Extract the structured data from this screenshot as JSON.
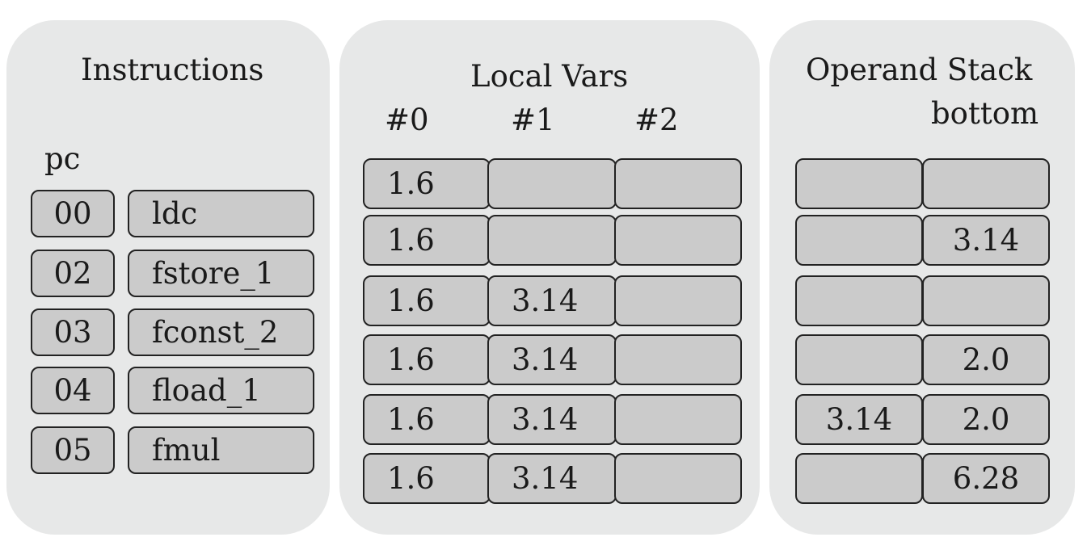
{
  "instructions": {
    "title": "Instructions",
    "pc_label": "pc",
    "rows": [
      {
        "pc": "00",
        "op": "ldc"
      },
      {
        "pc": "02",
        "op": "fstore_1"
      },
      {
        "pc": "03",
        "op": "fconst_2"
      },
      {
        "pc": "04",
        "op": "fload_1"
      },
      {
        "pc": "05",
        "op": "fmul"
      }
    ]
  },
  "local_vars": {
    "title": "Local Vars",
    "headers": [
      "#0",
      "#1",
      "#2"
    ],
    "rows": [
      [
        "1.6",
        "",
        ""
      ],
      [
        "1.6",
        "",
        ""
      ],
      [
        "1.6",
        "3.14",
        ""
      ],
      [
        "1.6",
        "3.14",
        ""
      ],
      [
        "1.6",
        "3.14",
        ""
      ],
      [
        "1.6",
        "3.14",
        ""
      ]
    ]
  },
  "operand_stack": {
    "title": "Operand Stack",
    "bottom_label": "bottom",
    "rows": [
      [
        "",
        ""
      ],
      [
        "",
        "3.14"
      ],
      [
        "",
        ""
      ],
      [
        "",
        "2.0"
      ],
      [
        "3.14",
        "2.0"
      ],
      [
        "",
        "6.28"
      ]
    ]
  }
}
